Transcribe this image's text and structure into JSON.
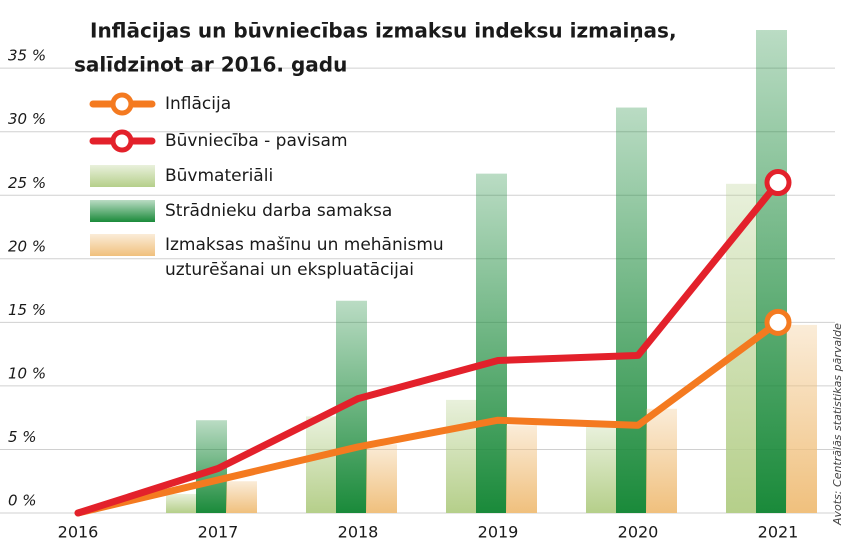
{
  "chart_data": {
    "type": "combo",
    "title": [
      "Inflācijas un būvniecības izmaksu indeksu izmaiņas,",
      "salīdzinot ar 2016. gadu"
    ],
    "source": "Avots: Centrālās statistikas pārvalde",
    "categories": [
      "2016",
      "2017",
      "2018",
      "2019",
      "2020",
      "2021"
    ],
    "ylim": [
      0,
      40
    ],
    "yticks": [
      {
        "value": 0,
        "label": "0 %"
      },
      {
        "value": 5,
        "label": "5 %"
      },
      {
        "value": 10,
        "label": "10 %"
      },
      {
        "value": 15,
        "label": "15 %"
      },
      {
        "value": 20,
        "label": "20 %"
      },
      {
        "value": 25,
        "label": "25 %"
      },
      {
        "value": 30,
        "label": "30 %"
      },
      {
        "value": 35,
        "label": "35 %"
      }
    ],
    "grid": true,
    "series": [
      {
        "name": "Inflācija",
        "type": "line",
        "color": "#f47a20",
        "values": [
          0,
          2.6,
          5.2,
          7.3,
          6.9,
          15
        ]
      },
      {
        "name": "Būvniecība - pavisam",
        "type": "line",
        "color": "#e3212b",
        "values": [
          0,
          3.5,
          9.0,
          12,
          12.4,
          26
        ]
      },
      {
        "name": "Būvmateriāli",
        "type": "bar",
        "color": "#b5cf8a",
        "values": [
          0,
          1.5,
          7.6,
          8.9,
          6.8,
          25.9
        ]
      },
      {
        "name": "Strādnieku darba samaksa",
        "type": "bar",
        "color": "#1a8a3a",
        "values": [
          0,
          7.3,
          16.7,
          26.7,
          31.9,
          38
        ]
      },
      {
        "name": "Izmaksas mašīnu un mehānismu\nuzturēšanai un ekspluatācijai",
        "type": "bar",
        "color": "#f0c07d",
        "values": [
          0,
          2.5,
          5.4,
          6.9,
          8.2,
          14.8
        ]
      }
    ]
  }
}
